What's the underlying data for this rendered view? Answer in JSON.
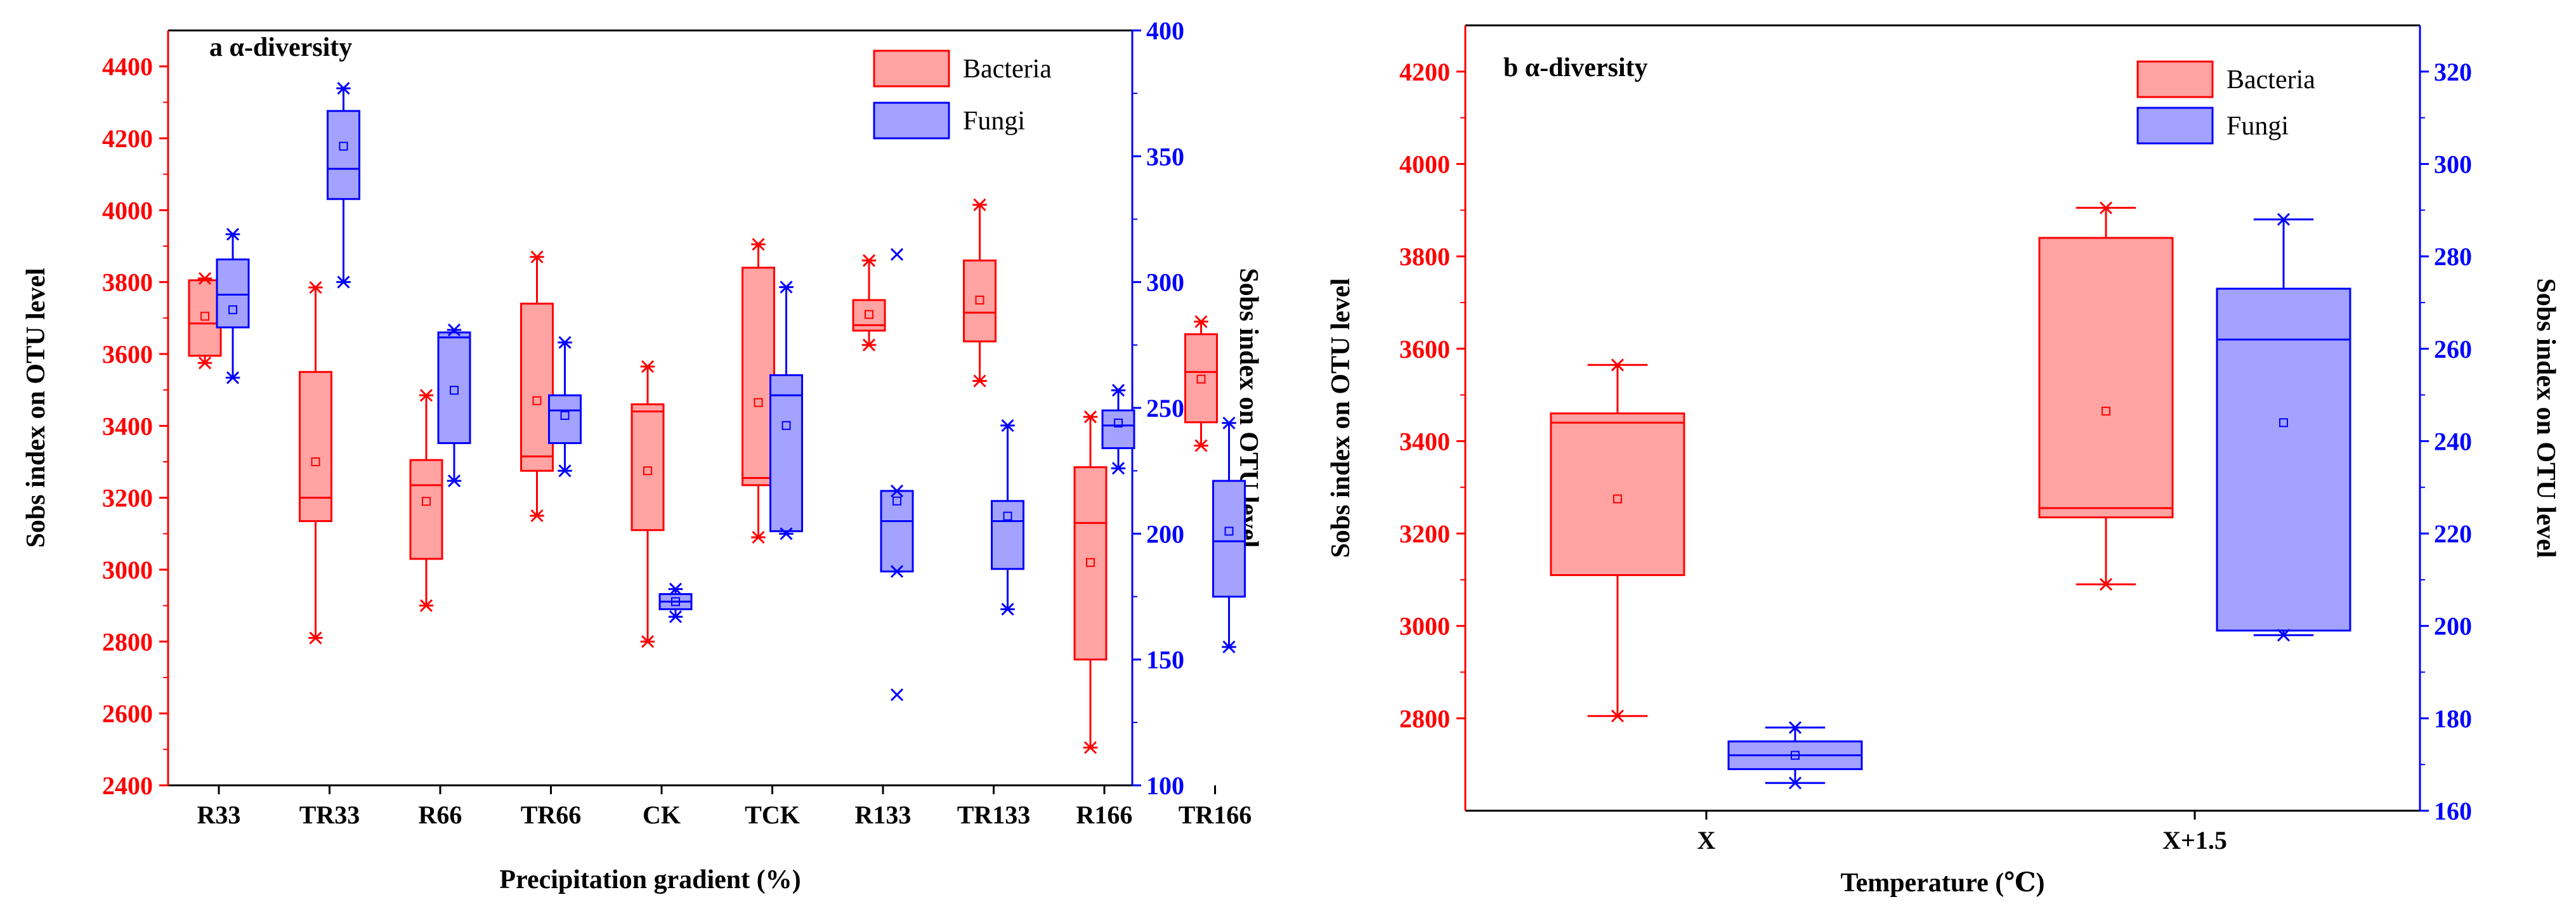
{
  "chart_data": [
    {
      "type": "box",
      "panel_label": "a α-diversity",
      "xlabel": "Precipitation gradient (%)",
      "ylabel_left": "Sobs index on OTU level",
      "ylabel_right": "Sobs index on OTU level",
      "categories": [
        "R33",
        "TR33",
        "R66",
        "TR66",
        "CK",
        "TCK",
        "R133",
        "TR133",
        "R166",
        "TR166"
      ],
      "ylim_left": [
        2400,
        4500
      ],
      "yticks_left": [
        2400,
        2600,
        2800,
        3000,
        3200,
        3400,
        3600,
        3800,
        4000,
        4200,
        4400
      ],
      "ylim_right": [
        100,
        400
      ],
      "yticks_right": [
        100,
        150,
        200,
        250,
        300,
        350,
        400
      ],
      "legend": [
        "Bacteria",
        "Fungi"
      ],
      "colors": {
        "bacteria": "#ff0000",
        "bacteria_fill": "#ffa3a3",
        "fungi": "#0000ff",
        "fungi_fill": "#a3a3ff",
        "axis": "#000000"
      },
      "series": [
        {
          "name": "Bacteria",
          "axis": "left",
          "boxes": [
            {
              "min": 3575,
              "q1": 3595,
              "median": 3685,
              "q3": 3805,
              "max": 3810,
              "mean": 3705,
              "outliers": []
            },
            {
              "min": 2810,
              "q1": 3135,
              "median": 3200,
              "q3": 3550,
              "max": 3785,
              "mean": 3300,
              "outliers": []
            },
            {
              "min": 2900,
              "q1": 3030,
              "median": 3235,
              "q3": 3305,
              "max": 3485,
              "mean": 3190,
              "outliers": []
            },
            {
              "min": 3150,
              "q1": 3275,
              "median": 3315,
              "q3": 3740,
              "max": 3870,
              "mean": 3470,
              "outliers": []
            },
            {
              "min": 2800,
              "q1": 3110,
              "median": 3440,
              "q3": 3460,
              "max": 3565,
              "mean": 3275,
              "outliers": []
            },
            {
              "min": 3090,
              "q1": 3235,
              "median": 3255,
              "q3": 3840,
              "max": 3905,
              "mean": 3465,
              "outliers": []
            },
            {
              "min": 3625,
              "q1": 3665,
              "median": 3680,
              "q3": 3750,
              "max": 3860,
              "mean": 3710,
              "outliers": []
            },
            {
              "min": 3525,
              "q1": 3635,
              "median": 3715,
              "q3": 3860,
              "max": 4015,
              "mean": 3750,
              "outliers": []
            },
            {
              "min": 2505,
              "q1": 2750,
              "median": 3130,
              "q3": 3285,
              "max": 3425,
              "mean": 3020,
              "outliers": []
            },
            {
              "min": 3345,
              "q1": 3410,
              "median": 3550,
              "q3": 3655,
              "max": 3690,
              "mean": 3530,
              "outliers": []
            }
          ]
        },
        {
          "name": "Fungi",
          "axis": "right",
          "boxes": [
            {
              "min": 262,
              "q1": 282,
              "median": 295,
              "q3": 309,
              "max": 319,
              "mean": 289,
              "outliers": []
            },
            {
              "min": 300,
              "q1": 333,
              "median": 345,
              "q3": 368,
              "max": 377,
              "mean": 354,
              "outliers": []
            },
            {
              "min": 221,
              "q1": 236,
              "median": 278,
              "q3": 280,
              "max": 281,
              "mean": 257,
              "outliers": []
            },
            {
              "min": 225,
              "q1": 236,
              "median": 249,
              "q3": 255,
              "max": 276,
              "mean": 247,
              "outliers": []
            },
            {
              "min": 167,
              "q1": 170,
              "median": 173,
              "q3": 176,
              "max": 178,
              "mean": 173,
              "outliers": []
            },
            {
              "min": 200,
              "q1": 201,
              "median": 255,
              "q3": 263,
              "max": 298,
              "mean": 243,
              "outliers": []
            },
            {
              "min": 185,
              "q1": 185,
              "median": 205,
              "q3": 217,
              "max": 217,
              "mean": 213,
              "outliers": [
                311,
                136
              ]
            },
            {
              "min": 170,
              "q1": 186,
              "median": 205,
              "q3": 213,
              "max": 243,
              "mean": 207,
              "outliers": []
            },
            {
              "min": 226,
              "q1": 234,
              "median": 243,
              "q3": 249,
              "max": 257,
              "mean": 244,
              "outliers": []
            },
            {
              "min": 155,
              "q1": 175,
              "median": 197,
              "q3": 221,
              "max": 244,
              "mean": 201,
              "outliers": []
            }
          ]
        }
      ]
    },
    {
      "type": "box",
      "panel_label": "b α-diversity",
      "xlabel": "Temperature (℃)",
      "ylabel_left": "Sobs index on OTU level",
      "ylabel_right": "Sobs index on OTU level",
      "categories": [
        "X",
        "X+1.5"
      ],
      "ylim_left": [
        2600,
        4300
      ],
      "yticks_left": [
        2800,
        3000,
        3200,
        3400,
        3600,
        3800,
        4000,
        4200
      ],
      "ylim_right": [
        160,
        330
      ],
      "yticks_right": [
        160,
        180,
        200,
        220,
        240,
        260,
        280,
        300,
        320
      ],
      "legend": [
        "Bacteria",
        "Fungi"
      ],
      "colors": {
        "bacteria": "#ff0000",
        "bacteria_fill": "#ffa3a3",
        "fungi": "#0000ff",
        "fungi_fill": "#a3a3ff",
        "axis": "#000000"
      },
      "series": [
        {
          "name": "Bacteria",
          "axis": "left",
          "boxes": [
            {
              "min": 2805,
              "q1": 3110,
              "median": 3440,
              "q3": 3460,
              "max": 3565,
              "mean": 3275,
              "outliers": []
            },
            {
              "min": 3090,
              "q1": 3235,
              "median": 3255,
              "q3": 3840,
              "max": 3905,
              "mean": 3465,
              "outliers": []
            }
          ]
        },
        {
          "name": "Fungi",
          "axis": "right",
          "boxes": [
            {
              "min": 166,
              "q1": 169,
              "median": 172,
              "q3": 175,
              "max": 178,
              "mean": 172,
              "outliers": []
            },
            {
              "min": 198,
              "q1": 199,
              "median": 262,
              "q3": 273,
              "max": 288,
              "mean": 244,
              "outliers": []
            }
          ]
        }
      ]
    }
  ]
}
